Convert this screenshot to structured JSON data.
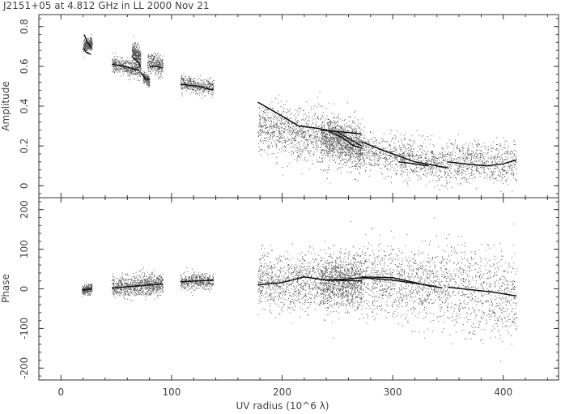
{
  "chart_data": {
    "type": "scatter",
    "title": "J2151+05 at 4.812 GHz in LL  2000 Nov 21",
    "xlabel": "UV radius  (10^6 λ)",
    "xlim": [
      -20,
      450
    ],
    "xticks": [
      0,
      100,
      200,
      300,
      400
    ],
    "panels": [
      {
        "name": "amplitude",
        "ylabel": "Amplitude",
        "ylim": [
          -0.06,
          0.86
        ],
        "yticks": [
          0,
          0.2,
          0.4,
          0.6,
          0.8
        ],
        "ytick_labels": [
          "0",
          "0.2",
          "0.4",
          "0.6",
          "0.8"
        ],
        "scatter_clusters": [
          {
            "x": [
              20,
              28
            ],
            "y": [
              0.7,
              0.72
            ],
            "spread": 0.03,
            "n": 260
          },
          {
            "x": [
              46,
              72
            ],
            "y": [
              0.61,
              0.58
            ],
            "spread": 0.04,
            "n": 420
          },
          {
            "x": [
              64,
              72
            ],
            "y": [
              0.68,
              0.64
            ],
            "spread": 0.05,
            "n": 300
          },
          {
            "x": [
              74,
              80
            ],
            "y": [
              0.55,
              0.52
            ],
            "spread": 0.03,
            "n": 160
          },
          {
            "x": [
              78,
              92
            ],
            "y": [
              0.62,
              0.6
            ],
            "spread": 0.05,
            "n": 280
          },
          {
            "x": [
              108,
              138
            ],
            "y": [
              0.52,
              0.49
            ],
            "spread": 0.04,
            "n": 420
          },
          {
            "x": [
              178,
              272
            ],
            "y": [
              0.3,
              0.2
            ],
            "spread": 0.13,
            "n": 1300
          },
          {
            "x": [
              235,
              272
            ],
            "y": [
              0.25,
              0.19
            ],
            "spread": 0.11,
            "n": 700
          },
          {
            "x": [
              272,
              350
            ],
            "y": [
              0.18,
              0.1
            ],
            "spread": 0.1,
            "n": 900
          },
          {
            "x": [
              350,
              412
            ],
            "y": [
              0.12,
              0.12
            ],
            "spread": 0.1,
            "n": 650
          }
        ],
        "track_lines": [
          {
            "x": [
              20,
              23,
              27
            ],
            "y": [
              0.69,
              0.67,
              0.66
            ]
          },
          {
            "x": [
              21,
              24,
              28
            ],
            "y": [
              0.76,
              0.72,
              0.69
            ]
          },
          {
            "x": [
              46,
              58,
              70
            ],
            "y": [
              0.61,
              0.6,
              0.58
            ]
          },
          {
            "x": [
              64,
              70,
              72
            ],
            "y": [
              0.65,
              0.62,
              0.6
            ]
          },
          {
            "x": [
              72,
              76,
              80
            ],
            "y": [
              0.57,
              0.54,
              0.53
            ]
          },
          {
            "x": [
              80,
              86,
              92
            ],
            "y": [
              0.6,
              0.6,
              0.59
            ]
          },
          {
            "x": [
              108,
              124,
              138
            ],
            "y": [
              0.51,
              0.5,
              0.48
            ]
          },
          {
            "x": [
              178,
              200,
              215,
              230,
              250,
              272
            ],
            "y": [
              0.42,
              0.35,
              0.3,
              0.29,
              0.27,
              0.2
            ]
          },
          {
            "x": [
              240,
              255,
              265,
              272
            ],
            "y": [
              0.28,
              0.24,
              0.2,
              0.19
            ]
          },
          {
            "x": [
              235,
              255,
              272
            ],
            "y": [
              0.28,
              0.27,
              0.26
            ]
          },
          {
            "x": [
              272,
              295,
              320,
              340,
              350
            ],
            "y": [
              0.22,
              0.17,
              0.12,
              0.1,
              0.09
            ]
          },
          {
            "x": [
              305,
              320,
              332
            ],
            "y": [
              0.12,
              0.11,
              0.1
            ]
          },
          {
            "x": [
              350,
              365,
              385,
              400,
              412
            ],
            "y": [
              0.12,
              0.11,
              0.1,
              0.11,
              0.13
            ]
          }
        ]
      },
      {
        "name": "phase",
        "ylabel": "Phase",
        "ylim": [
          -230,
          230
        ],
        "yticks": [
          -200,
          -100,
          0,
          100,
          200
        ],
        "ytick_labels": [
          "-200",
          "-100",
          "0",
          "100",
          "200"
        ],
        "scatter_clusters": [
          {
            "x": [
              19,
              28
            ],
            "y": [
              -2,
              0
            ],
            "spread": 12,
            "n": 260
          },
          {
            "x": [
              46,
              72
            ],
            "y": [
              5,
              10
            ],
            "spread": 28,
            "n": 420
          },
          {
            "x": [
              72,
              92
            ],
            "y": [
              10,
              12
            ],
            "spread": 26,
            "n": 420
          },
          {
            "x": [
              108,
              138
            ],
            "y": [
              18,
              20
            ],
            "spread": 20,
            "n": 420
          },
          {
            "x": [
              178,
              272
            ],
            "y": [
              15,
              22
            ],
            "spread": 70,
            "n": 1400
          },
          {
            "x": [
              235,
              272
            ],
            "y": [
              22,
              20
            ],
            "spread": 60,
            "n": 600
          },
          {
            "x": [
              272,
              350
            ],
            "y": [
              25,
              5
            ],
            "spread": 90,
            "n": 1000
          },
          {
            "x": [
              350,
              412
            ],
            "y": [
              5,
              -18
            ],
            "spread": 110,
            "n": 700
          }
        ],
        "track_lines": [
          {
            "x": [
              19,
              28
            ],
            "y": [
              -3,
              0
            ]
          },
          {
            "x": [
              46,
              72
            ],
            "y": [
              2,
              8
            ]
          },
          {
            "x": [
              72,
              92
            ],
            "y": [
              8,
              12
            ]
          },
          {
            "x": [
              108,
              138
            ],
            "y": [
              18,
              22
            ]
          },
          {
            "x": [
              178,
              200,
              220,
              240,
              272
            ],
            "y": [
              10,
              16,
              30,
              22,
              20
            ]
          },
          {
            "x": [
              240,
              260,
              272,
              300,
              330,
              345
            ],
            "y": [
              22,
              25,
              28,
              22,
              10,
              2
            ]
          },
          {
            "x": [
              272,
              300,
              320,
              335
            ],
            "y": [
              30,
              28,
              16,
              6
            ]
          },
          {
            "x": [
              350,
              370,
              390,
              412
            ],
            "y": [
              4,
              -2,
              -8,
              -18
            ]
          }
        ]
      }
    ]
  }
}
